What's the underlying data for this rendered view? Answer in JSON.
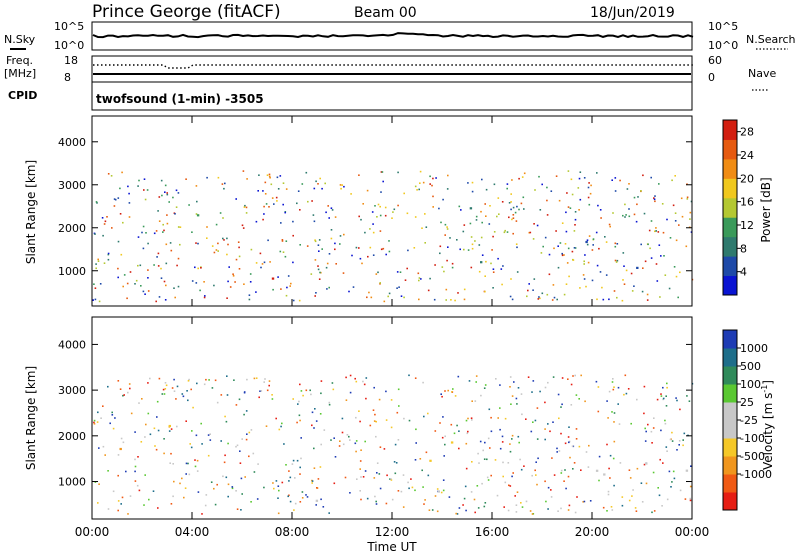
{
  "header": {
    "station": "Prince George (fitACF)",
    "beam": "Beam 00",
    "date": "18/Jun/2019"
  },
  "top_panels": {
    "nsky_label": "N.Sky",
    "nsky_ticks": [
      "10^5",
      "10^0"
    ],
    "nsearch_label": "N.Search",
    "nsearch_ticks": [
      "10^5",
      "10^0"
    ],
    "freq_label": "Freq.",
    "freq_unit": "[MHz]",
    "freq_ticks": [
      "18",
      "8"
    ],
    "nave_label": "Nave",
    "nave_ticks": [
      "60",
      "0"
    ],
    "cpid_label": "CPID",
    "cpid_text": "twofsound (1-min) -3505"
  },
  "colors": {
    "power": [
      "#0a14d2",
      "#1e4aa8",
      "#2f7a6e",
      "#3a9a5a",
      "#b4c832",
      "#f0c81e",
      "#f08c14",
      "#e65a10",
      "#d21e10"
    ],
    "velocity": [
      "#e61e14",
      "#f05a14",
      "#f0961e",
      "#f5c828",
      "#c8c8c8",
      "#c8c8c8",
      "#5ac832",
      "#2f8a5a",
      "#1e6e8a",
      "#1e3cb4"
    ]
  },
  "chart_data": [
    {
      "type": "heatmap",
      "name": "power",
      "ylabel": "Slant Range [km]",
      "yticks": [
        1000,
        2000,
        3000,
        4000
      ],
      "ylim": [
        180,
        4600
      ],
      "xlim": [
        0,
        24
      ],
      "colorbar_label": "Power [dB]",
      "colorbar_ticks": [
        4,
        8,
        12,
        16,
        20,
        24,
        28
      ],
      "colorbar_range": [
        0,
        30
      ],
      "regions": [
        {
          "x": [
            0.2,
            1.5
          ],
          "y": [
            1300,
            1750
          ],
          "level": 1
        },
        {
          "x": [
            1.5,
            3.0
          ],
          "y": [
            1800,
            2200
          ],
          "level": 1
        },
        {
          "x": [
            3.0,
            6.0
          ],
          "y": [
            1800,
            2400
          ],
          "level": 4
        },
        {
          "x": [
            4.5,
            6.0
          ],
          "y": [
            2300,
            2800
          ],
          "level": 3
        },
        {
          "x": [
            6.5,
            9.0
          ],
          "y": [
            2800,
            3200
          ],
          "level": 1
        },
        {
          "x": [
            5.0,
            9.0
          ],
          "y": [
            500,
            950
          ],
          "level": 7
        },
        {
          "x": [
            6.0,
            9.0
          ],
          "y": [
            950,
            1300
          ],
          "level": 3
        },
        {
          "x": [
            5.5,
            8.5
          ],
          "y": [
            250,
            450
          ],
          "level": 8
        },
        {
          "x": [
            14.0,
            15.5
          ],
          "y": [
            1800,
            2700
          ],
          "level": 1
        },
        {
          "x": [
            15.0,
            24.0
          ],
          "y": [
            900,
            1500
          ],
          "level": 1
        },
        {
          "x": [
            15.5,
            17.5
          ],
          "y": [
            400,
            800
          ],
          "level": 5
        },
        {
          "x": [
            19.0,
            22.5
          ],
          "y": [
            1400,
            2000
          ],
          "level": 1
        },
        {
          "x": [
            22.0,
            24.0
          ],
          "y": [
            1200,
            1600
          ],
          "level": 1
        }
      ]
    },
    {
      "type": "heatmap",
      "name": "velocity",
      "ylabel": "Slant Range [km]",
      "yticks": [
        1000,
        2000,
        3000,
        4000
      ],
      "ylim": [
        180,
        4600
      ],
      "xlim": [
        0,
        24
      ],
      "xlabel": "Time UT",
      "xticks": [
        "00:00",
        "04:00",
        "08:00",
        "12:00",
        "16:00",
        "20:00",
        "00:00"
      ],
      "colorbar_label": "Velocity [m s",
      "colorbar_unit_sup": "-1",
      "colorbar_label_end": "]",
      "colorbar_ticks": [
        "1000",
        "500",
        "100",
        "25",
        "-25",
        "-100",
        "-500",
        "-1000"
      ],
      "regions": [
        {
          "x": [
            3.0,
            6.5
          ],
          "y": [
            1800,
            2700
          ],
          "level": 3
        },
        {
          "x": [
            0.3,
            3.0
          ],
          "y": [
            1300,
            1800
          ],
          "level": 2
        },
        {
          "x": [
            5.5,
            9.5
          ],
          "y": [
            550,
            1300
          ],
          "level": 4
        },
        {
          "x": [
            8.0,
            9.0
          ],
          "y": [
            700,
            1300
          ],
          "level": 3
        },
        {
          "x": [
            5.0,
            9.0
          ],
          "y": [
            250,
            450
          ],
          "level": 3
        },
        {
          "x": [
            13.0,
            24.0
          ],
          "y": [
            600,
            1500
          ],
          "level": 4
        },
        {
          "x": [
            14.0,
            16.0
          ],
          "y": [
            1800,
            2700
          ],
          "level": 3
        },
        {
          "x": [
            20.0,
            24.0
          ],
          "y": [
            1400,
            1800
          ],
          "level": 4
        }
      ]
    }
  ]
}
